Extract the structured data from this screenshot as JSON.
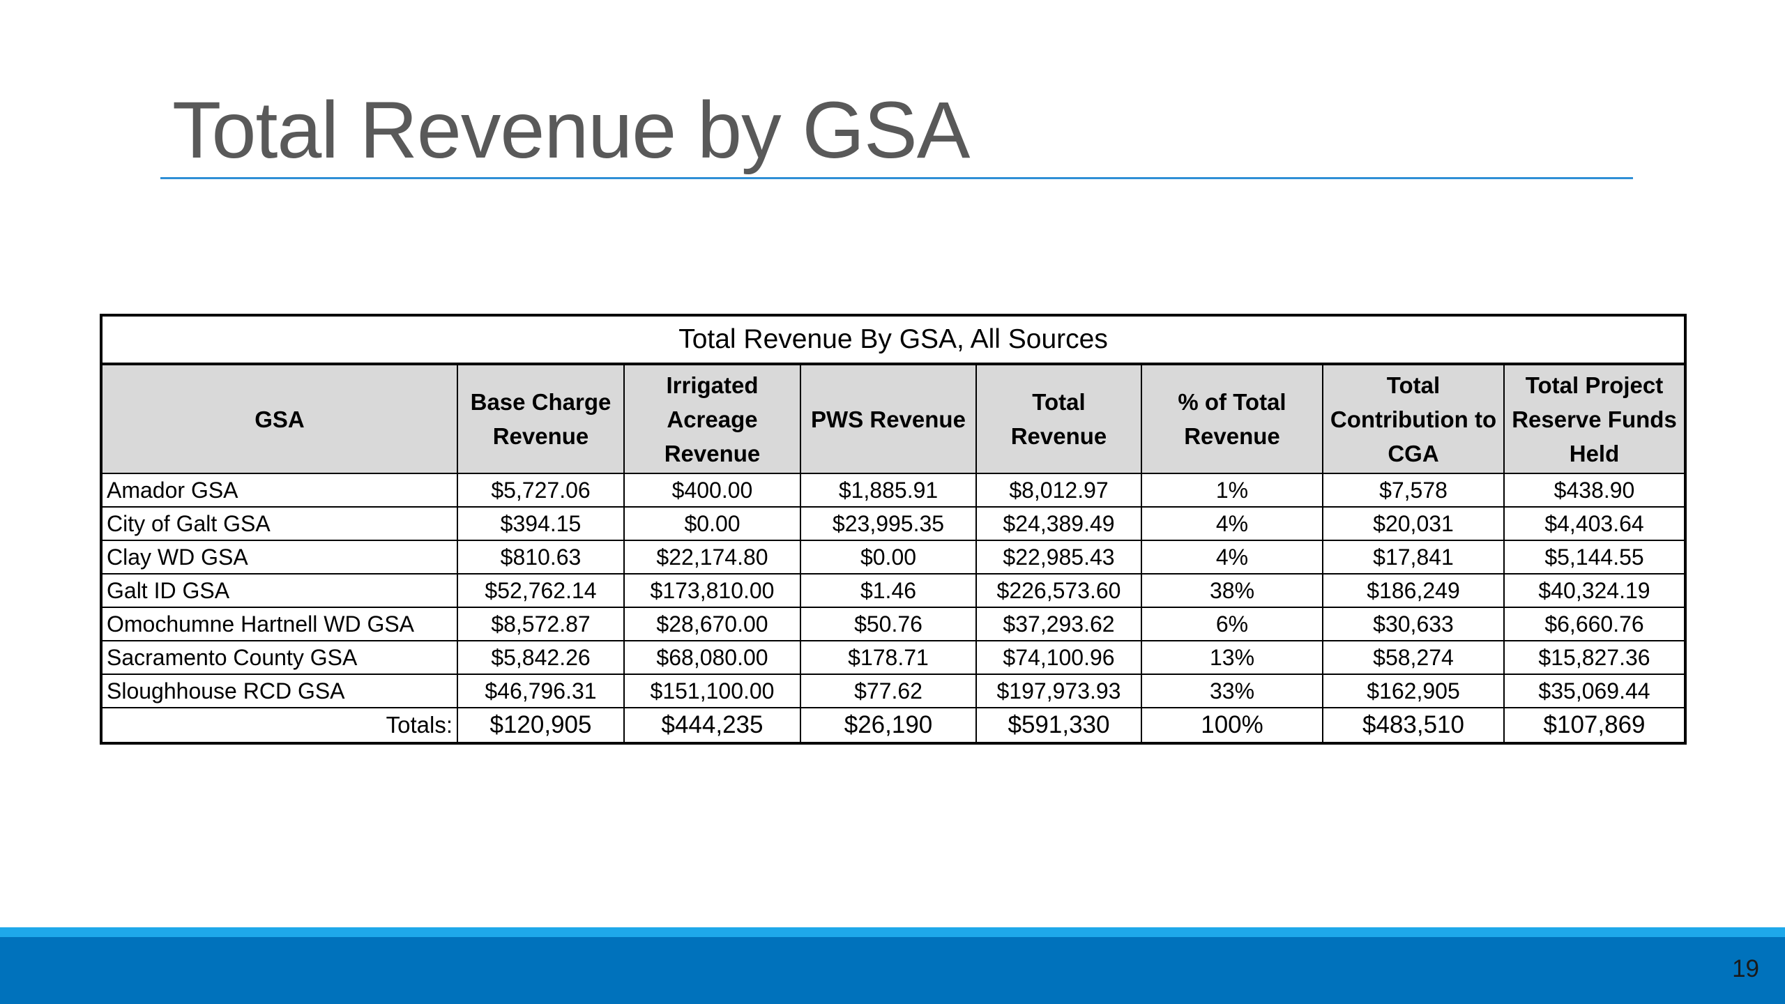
{
  "slide": {
    "title": "Total Revenue by GSA",
    "page_number": "19",
    "accent_color": "#2f8fd6",
    "footer_colors": [
      "#1ea8ea",
      "#0072bc"
    ]
  },
  "table": {
    "caption": "Total Revenue By GSA, All Sources",
    "headers": [
      "GSA",
      "Base Charge Revenue",
      "Irrigated Acreage Revenue",
      "PWS Revenue",
      "Total Revenue",
      "% of Total Revenue",
      "Total Contribution to CGA",
      "Total Project Reserve Funds Held"
    ],
    "rows": [
      [
        "Amador GSA",
        "$5,727.06",
        "$400.00",
        "$1,885.91",
        "$8,012.97",
        "1%",
        "$7,578",
        "$438.90"
      ],
      [
        "City of Galt GSA",
        "$394.15",
        "$0.00",
        "$23,995.35",
        "$24,389.49",
        "4%",
        "$20,031",
        "$4,403.64"
      ],
      [
        "Clay WD GSA",
        "$810.63",
        "$22,174.80",
        "$0.00",
        "$22,985.43",
        "4%",
        "$17,841",
        "$5,144.55"
      ],
      [
        "Galt ID GSA",
        "$52,762.14",
        "$173,810.00",
        "$1.46",
        "$226,573.60",
        "38%",
        "$186,249",
        "$40,324.19"
      ],
      [
        "Omochumne Hartnell WD GSA",
        "$8,572.87",
        "$28,670.00",
        "$50.76",
        "$37,293.62",
        "6%",
        "$30,633",
        "$6,660.76"
      ],
      [
        "Sacramento County GSA",
        "$5,842.26",
        "$68,080.00",
        "$178.71",
        "$74,100.96",
        "13%",
        "$58,274",
        "$15,827.36"
      ],
      [
        "Sloughhouse RCD GSA",
        "$46,796.31",
        "$151,100.00",
        "$77.62",
        "$197,973.93",
        "33%",
        "$162,905",
        "$35,069.44"
      ]
    ],
    "totals": [
      "Totals:",
      "$120,905",
      "$444,235",
      "$26,190",
      "$591,330",
      "100%",
      "$483,510",
      "$107,869"
    ]
  }
}
